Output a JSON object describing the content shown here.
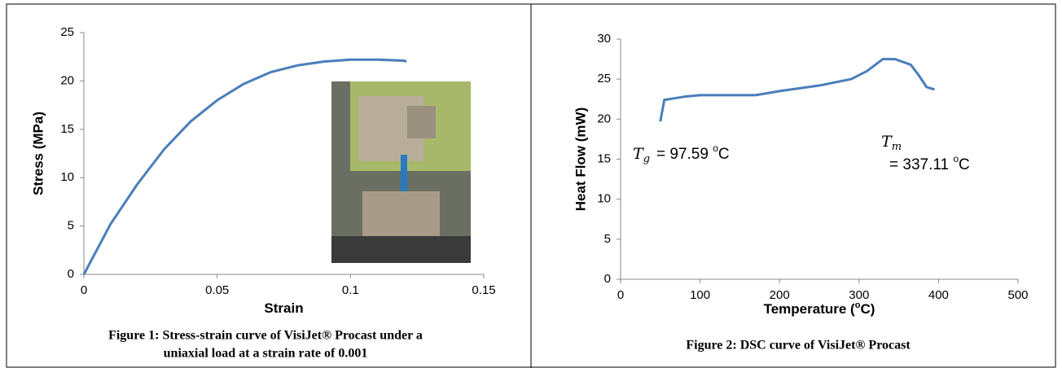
{
  "chart_data": [
    {
      "type": "line",
      "xlabel": [
        "Strain"
      ],
      "ylabel": "Stress (MPa)",
      "x": [
        0,
        0.01,
        0.02,
        0.03,
        0.04,
        0.05,
        0.06,
        0.07,
        0.08,
        0.09,
        0.1,
        0.11,
        0.12,
        0.121
      ],
      "values": [
        0,
        5.2,
        9.3,
        12.9,
        15.8,
        18.0,
        19.7,
        20.9,
        21.6,
        22.0,
        22.2,
        22.2,
        22.1,
        22.0
      ],
      "color": "#4a7ebb",
      "xlim": [
        0,
        0.15
      ],
      "xticks": [
        0,
        0.05,
        0.1,
        0.15
      ],
      "ylim": [
        0,
        25
      ],
      "yticks": [
        0,
        5,
        10,
        15,
        20,
        25
      ],
      "caption": [
        "Figure 1: Stress-strain curve of VisiJet® Procast under a",
        "uniaxial load at a strain rate of 0.001"
      ]
    },
    {
      "type": "line",
      "xlabel": [
        "Temperature (",
        "o",
        "C)"
      ],
      "ylabel": "Heat Flow (mW)",
      "x": [
        50,
        55,
        80,
        100,
        150,
        170,
        200,
        250,
        290,
        310,
        330,
        345,
        365,
        375,
        385,
        395
      ],
      "values": [
        19.7,
        22.4,
        22.8,
        23.0,
        23.0,
        23.0,
        23.5,
        24.2,
        25.0,
        26.0,
        27.5,
        27.5,
        26.8,
        25.5,
        24.0,
        23.7
      ],
      "color": "#4a7ebb",
      "xlim": [
        0,
        500
      ],
      "xticks": [
        0,
        100,
        200,
        300,
        400,
        500
      ],
      "ylim": [
        0,
        30
      ],
      "yticks": [
        0,
        5,
        10,
        15,
        20,
        25,
        30
      ],
      "annotations": [
        {
          "symbol": "T",
          "subscript": "g",
          "text": "= 97.59 ",
          "degree": "o",
          "unit": "C"
        },
        {
          "symbol": "T",
          "subscript": "m",
          "text": "= 337.11 ",
          "degree": "o",
          "unit": "C"
        }
      ],
      "caption": [
        "Figure 2: DSC curve of VisiJet® Procast"
      ]
    }
  ]
}
